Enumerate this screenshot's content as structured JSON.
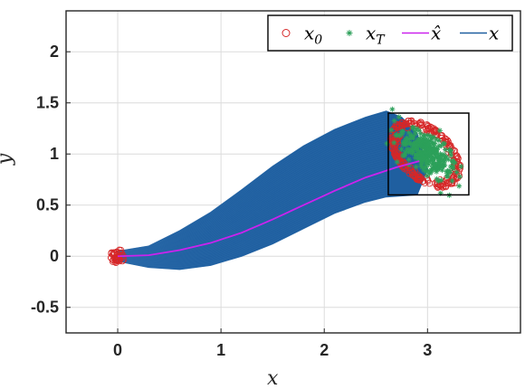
{
  "chart_data": {
    "type": "line",
    "title": "",
    "xlabel": "x",
    "ylabel": "y",
    "xlim": [
      -0.5,
      3.9
    ],
    "ylim": [
      -0.75,
      2.4
    ],
    "xticks": [
      "0",
      "1",
      "2",
      "3"
    ],
    "yticks": [
      "-0.5",
      "0",
      "0.5",
      "1",
      "1.5",
      "2"
    ],
    "grid": true,
    "legend_position": "top-right",
    "legend": [
      {
        "label": "x_0",
        "marker": "circle",
        "color": "#d62728"
      },
      {
        "label": "x_T",
        "marker": "asterisk",
        "color": "#2ca05a"
      },
      {
        "label": "x̂",
        "marker": "line",
        "color": "#cc22ee"
      },
      {
        "label": "x",
        "marker": "line",
        "color": "#1f5fa0"
      }
    ],
    "series": [
      {
        "name": "x̂",
        "color": "#cc22ee",
        "x": [
          0.0,
          0.3,
          0.6,
          0.9,
          1.2,
          1.5,
          1.8,
          2.1,
          2.4,
          2.7,
          2.92
        ],
        "y": [
          0.0,
          0.01,
          0.06,
          0.13,
          0.23,
          0.36,
          0.5,
          0.64,
          0.77,
          0.87,
          0.93
        ]
      },
      {
        "name": "x",
        "color": "#1f5fa0",
        "x": [
          0.0,
          0.3,
          0.6,
          0.9,
          1.2,
          1.5,
          1.8,
          2.1,
          2.4,
          2.6
        ],
        "y_upper": [
          0.05,
          0.1,
          0.25,
          0.43,
          0.65,
          0.88,
          1.08,
          1.24,
          1.36,
          1.42
        ],
        "y_lower": [
          -0.05,
          -0.11,
          -0.13,
          -0.09,
          0.0,
          0.12,
          0.27,
          0.42,
          0.53,
          0.58
        ]
      },
      {
        "name": "x_0",
        "color": "#d62728",
        "center": [
          0.0,
          0.0
        ],
        "spread": [
          0.07,
          0.07
        ],
        "count": 40
      },
      {
        "name": "x_0",
        "color": "#d62728",
        "center": [
          2.98,
          1.0
        ],
        "spread": [
          0.4,
          0.45
        ],
        "count": 260
      },
      {
        "name": "x_T",
        "color": "#2ca05a",
        "center": [
          3.0,
          1.0
        ],
        "spread": [
          0.35,
          0.38
        ],
        "count": 320
      }
    ],
    "rectangle": {
      "x": [
        2.62,
        3.4
      ],
      "y": [
        0.6,
        1.4
      ]
    }
  }
}
